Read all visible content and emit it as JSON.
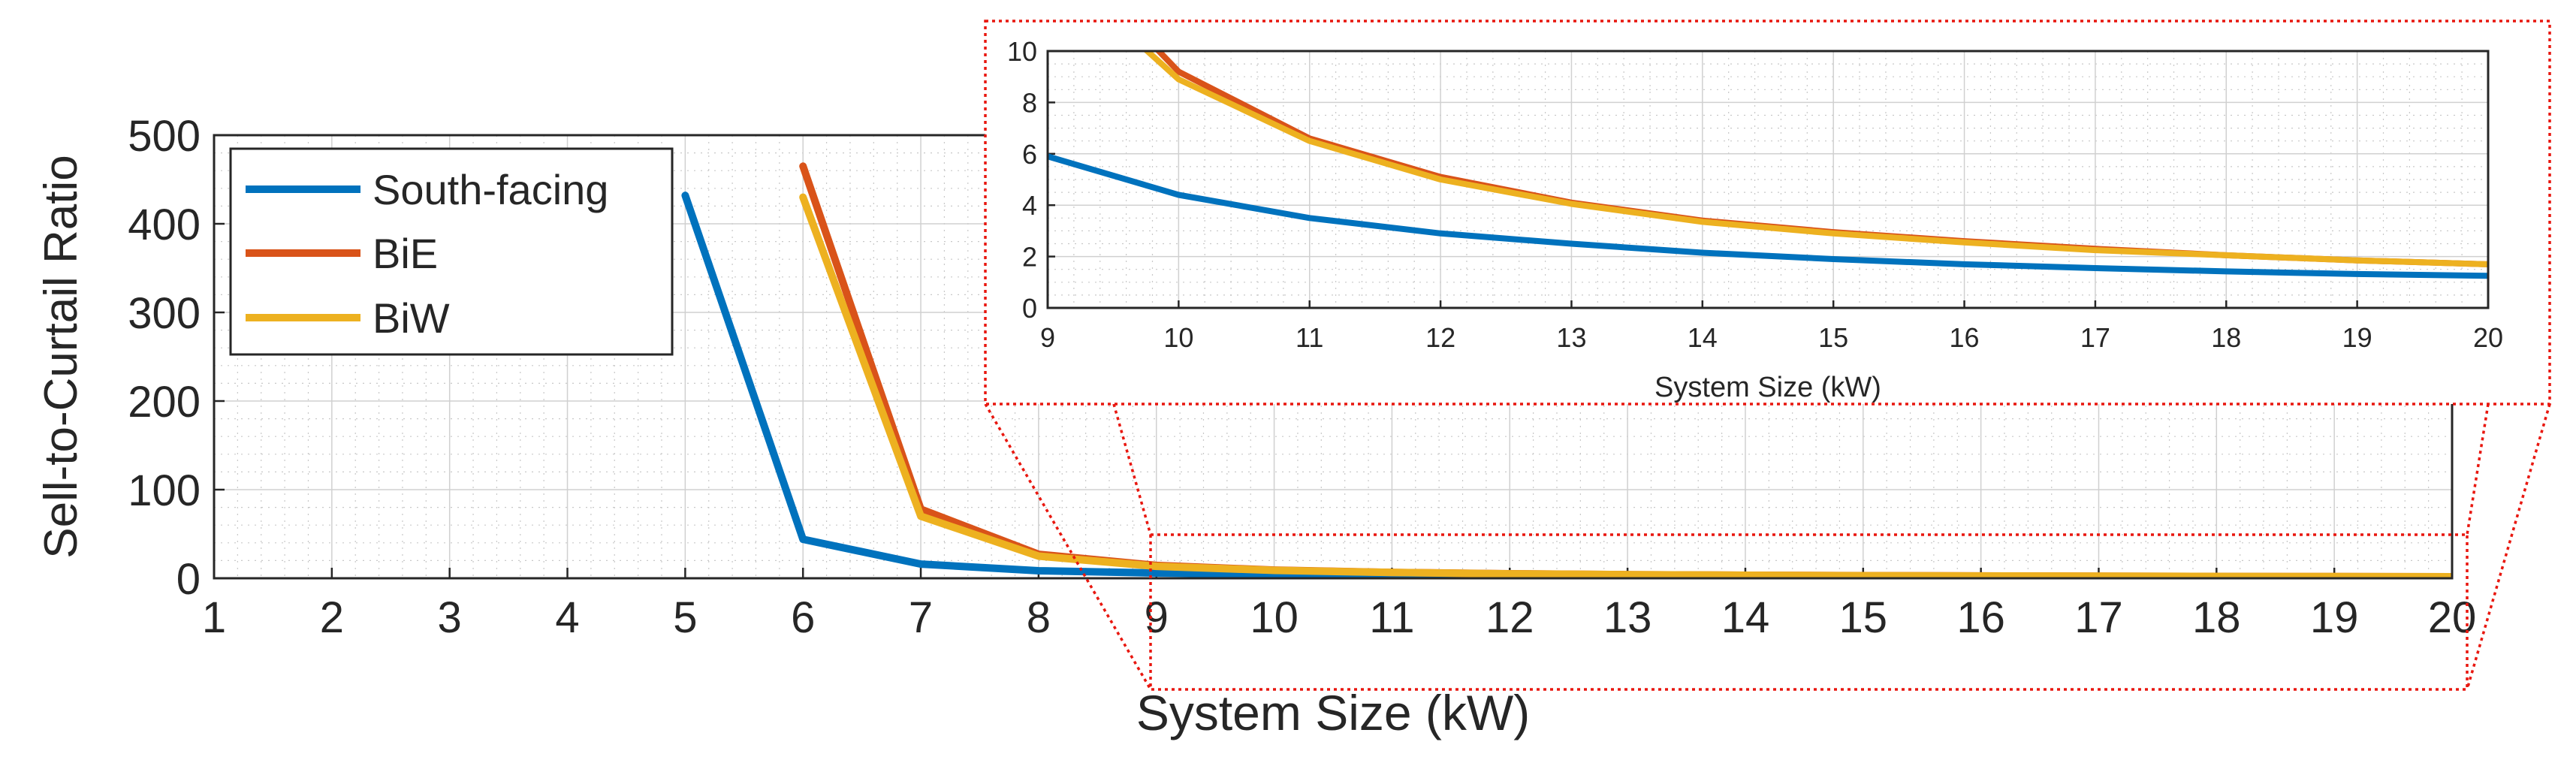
{
  "chart_data": [
    {
      "type": "line",
      "xlabel": "System Size (kW)",
      "ylabel": "Sell-to-Curtail Ratio",
      "xlim": [
        1,
        20
      ],
      "ylim": [
        0,
        500
      ],
      "xticks": [
        1,
        2,
        3,
        4,
        5,
        6,
        7,
        8,
        9,
        10,
        11,
        12,
        13,
        14,
        15,
        16,
        17,
        18,
        19,
        20
      ],
      "yticks": [
        0,
        100,
        200,
        300,
        400,
        500
      ],
      "grid": true,
      "legend_position": "top-left",
      "series": [
        {
          "name": "South-facing",
          "color": "#0072BD",
          "x": [
            5,
            6,
            7,
            8,
            9,
            10,
            11,
            12,
            13,
            14,
            15,
            16,
            17,
            18,
            19,
            20
          ],
          "y": [
            432,
            44,
            16,
            8.5,
            5.9,
            4.4,
            3.5,
            2.9,
            2.5,
            2.15,
            1.9,
            1.7,
            1.55,
            1.42,
            1.32,
            1.25
          ]
        },
        {
          "name": "BiE",
          "color": "#D95319",
          "x": [
            6,
            7,
            8,
            9,
            10,
            11,
            12,
            13,
            14,
            15,
            16,
            17,
            18,
            19,
            20
          ],
          "y": [
            465,
            78,
            27,
            14.5,
            9.2,
            6.6,
            5.1,
            4.1,
            3.4,
            2.95,
            2.6,
            2.3,
            2.05,
            1.85,
            1.7
          ]
        },
        {
          "name": "BiW",
          "color": "#EDB120",
          "x": [
            6,
            7,
            8,
            9,
            10,
            11,
            12,
            13,
            14,
            15,
            16,
            17,
            18,
            19,
            20
          ],
          "y": [
            430,
            70,
            25,
            13.5,
            8.9,
            6.5,
            5.0,
            4.05,
            3.35,
            2.9,
            2.55,
            2.25,
            2.05,
            1.85,
            1.7
          ]
        }
      ]
    },
    {
      "type": "line",
      "role": "inset",
      "xlabel": "System Size (kW)",
      "ylabel": "",
      "xlim": [
        9,
        20
      ],
      "ylim": [
        0,
        10
      ],
      "xticks": [
        9,
        10,
        11,
        12,
        13,
        14,
        15,
        16,
        17,
        18,
        19,
        20
      ],
      "yticks": [
        0,
        2,
        4,
        6,
        8,
        10
      ],
      "grid": true
    }
  ]
}
